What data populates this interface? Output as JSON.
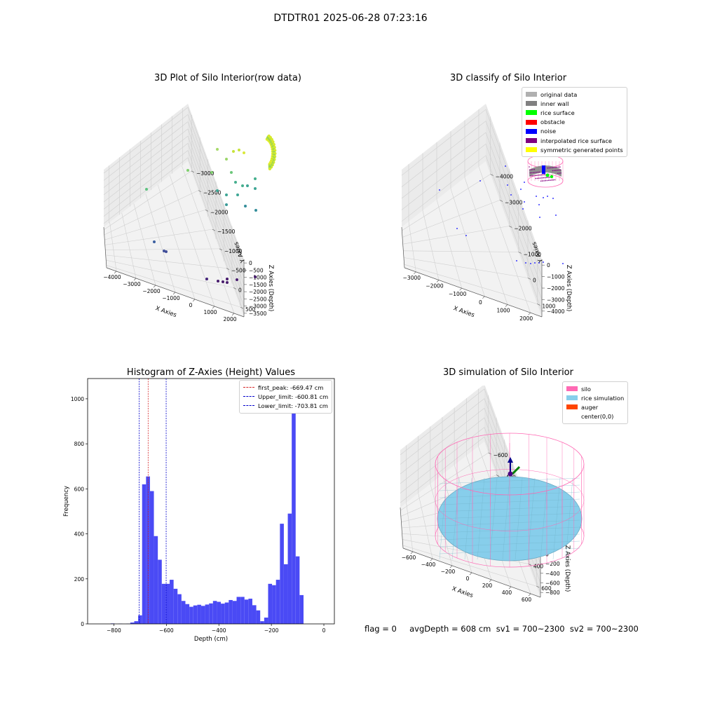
{
  "suptitle": "DTDTR01 2025-06-28 07:23:16",
  "status_text": "flag = 0     avgDepth = 608 cm  sv1 = 700~2300  sv2 = 700~2300",
  "chart_data": [
    {
      "type": "scatter3d",
      "title": "3D Plot of Silo Interior(row data)",
      "xlabel": "X Axies",
      "ylabel": "Y Axies",
      "zlabel": "Z Axies (Depth)",
      "xticks": [
        "−4000",
        "−3000",
        "−2000",
        "−1000",
        "0",
        "1000",
        "2000"
      ],
      "yticks": [
        "500",
        "0",
        "−500",
        "−1000",
        "−1500",
        "−2000",
        "−2500",
        "−3000"
      ],
      "zticks": [
        "0",
        "−500",
        "−1000",
        "−1500",
        "−2000",
        "−2500",
        "−3000",
        "−3500"
      ],
      "grid": true
    },
    {
      "type": "scatter3d",
      "title": "3D classify of Silo Interior",
      "xlabel": "X Axies",
      "ylabel": "Y Axies",
      "zlabel": "Z Axies (Depth)",
      "xticks": [
        "−3000",
        "−2000",
        "−1000",
        "0",
        "1000",
        "2000"
      ],
      "yticks": [
        "1000",
        "0",
        "−1000",
        "−2000",
        "−3000",
        "−4000"
      ],
      "zticks": [
        "0",
        "−1000",
        "−2000",
        "−3000",
        "−4000"
      ],
      "legend_position": "top-right",
      "legend": [
        {
          "label": "original data",
          "color": "#b0b0b0"
        },
        {
          "label": "inner wall",
          "color": "#808080"
        },
        {
          "label": "rice surface",
          "color": "#00ff00"
        },
        {
          "label": "obstacle",
          "color": "#ff0000"
        },
        {
          "label": "noise",
          "color": "#0000ff"
        },
        {
          "label": "interpolated rice surface",
          "color": "#800080"
        },
        {
          "label": "symmetric generated points",
          "color": "#ffff00"
        }
      ],
      "grid": true
    },
    {
      "type": "bar",
      "title": "Histogram of Z-Axies (Height) Values",
      "xlabel": "Depth (cm)",
      "ylabel": "Frequency",
      "xlim": [
        -900,
        40
      ],
      "ylim": [
        0,
        1090
      ],
      "xticks": [
        -800,
        -600,
        -400,
        -200,
        0
      ],
      "yticks": [
        0,
        200,
        400,
        600,
        800,
        1000
      ],
      "bin_width": 14.9,
      "bars": [
        [
          -805,
          2
        ],
        [
          -775,
          1
        ],
        [
          -745,
          1
        ],
        [
          -730,
          6
        ],
        [
          -715,
          12
        ],
        [
          -700,
          38
        ],
        [
          -685,
          620
        ],
        [
          -670,
          655
        ],
        [
          -655,
          590
        ],
        [
          -640,
          390
        ],
        [
          -625,
          285
        ],
        [
          -610,
          178
        ],
        [
          -595,
          178
        ],
        [
          -580,
          196
        ],
        [
          -565,
          156
        ],
        [
          -550,
          132
        ],
        [
          -535,
          102
        ],
        [
          -520,
          88
        ],
        [
          -505,
          76
        ],
        [
          -490,
          82
        ],
        [
          -475,
          85
        ],
        [
          -460,
          80
        ],
        [
          -445,
          86
        ],
        [
          -430,
          91
        ],
        [
          -415,
          102
        ],
        [
          -400,
          98
        ],
        [
          -385,
          90
        ],
        [
          -370,
          95
        ],
        [
          -355,
          106
        ],
        [
          -340,
          102
        ],
        [
          -325,
          120
        ],
        [
          -310,
          120
        ],
        [
          -295,
          108
        ],
        [
          -280,
          112
        ],
        [
          -265,
          83
        ],
        [
          -250,
          60
        ],
        [
          -235,
          12
        ],
        [
          -220,
          28
        ],
        [
          -205,
          178
        ],
        [
          -190,
          172
        ],
        [
          -175,
          196
        ],
        [
          -160,
          445
        ],
        [
          -145,
          265
        ],
        [
          -130,
          490
        ],
        [
          -115,
          1025
        ],
        [
          -100,
          300
        ],
        [
          -85,
          128
        ]
      ],
      "bar_color": "#4a4af5",
      "lines": [
        {
          "label": "first_peak: -669.47 cm",
          "x": -669.47,
          "color": "#d62728"
        },
        {
          "label": "Upper_limit: -600.81 cm",
          "x": -600.81,
          "color": "#0000cc"
        },
        {
          "label": "Lower_limit: -703.81 cm",
          "x": -703.81,
          "color": "#0000cc"
        }
      ],
      "legend_position": "top-right"
    },
    {
      "type": "surface3d",
      "title": "3D simulation of Silo Interior",
      "xlabel": "X Axies",
      "ylabel": "Y Axies",
      "zlabel": "Z Axies (Depth)",
      "xticks": [
        "−600",
        "−400",
        "−200",
        "0",
        "200",
        "400",
        "600"
      ],
      "yticks": [
        "600",
        "400",
        "200",
        "0",
        "−200",
        "−400",
        "−600"
      ],
      "zticks": [
        "200",
        "0",
        "−200",
        "−400",
        "−600",
        "−800"
      ],
      "legend_position": "top-right",
      "legend": [
        {
          "label": "silo",
          "color": "#ff69b4"
        },
        {
          "label": "rice simulation",
          "color": "#87ceeb"
        },
        {
          "label": "auger",
          "color": "#ff4500"
        },
        {
          "label": "center(0,0)",
          "color": "#ffffff"
        }
      ],
      "grid": true
    }
  ]
}
